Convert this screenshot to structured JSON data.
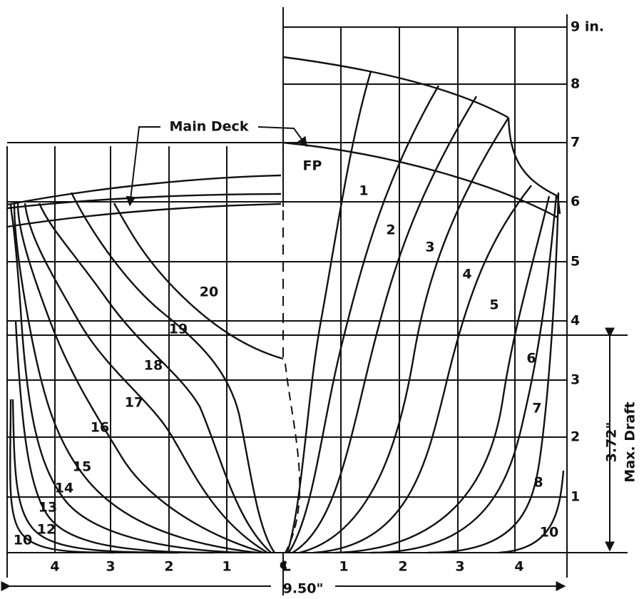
{
  "waterline_labels": [
    "9 in.",
    "8",
    "7",
    "6",
    "5",
    "4",
    "3",
    "2",
    "1"
  ],
  "callouts": {
    "main_deck": "Main Deck",
    "fp": "FP"
  },
  "stations_forward": [
    "1",
    "2",
    "3",
    "4",
    "5",
    "6",
    "7",
    "8",
    "10"
  ],
  "stations_aft": [
    "10",
    "12",
    "13",
    "14",
    "15",
    "16",
    "17",
    "18",
    "19",
    "20"
  ],
  "bottom_scale": [
    "4",
    "3",
    "2",
    "1",
    "℄",
    "1",
    "2",
    "3",
    "4"
  ],
  "dimensions": {
    "draft": "3.72\"",
    "draft_label": "Max. Draft",
    "beam": "9.50\""
  }
}
